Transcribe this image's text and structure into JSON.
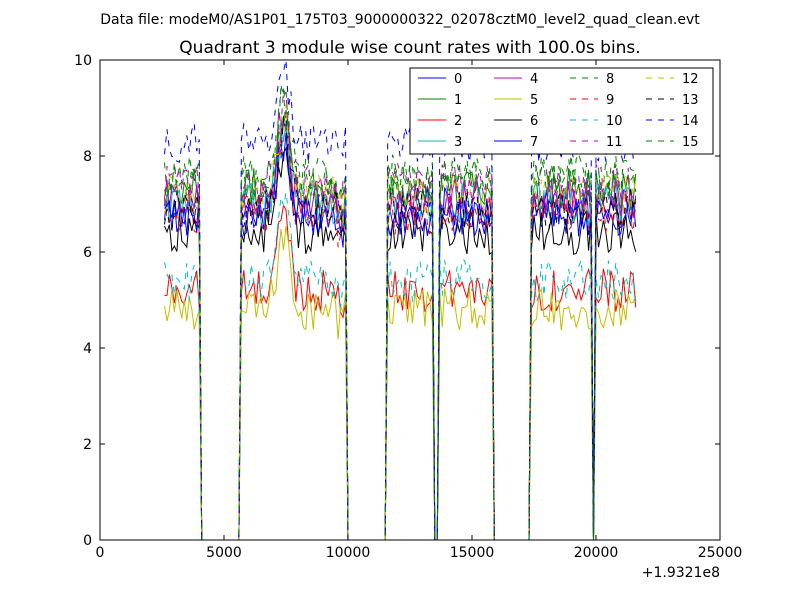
{
  "chart_data": {
    "type": "line",
    "suptitle": "Data file: modeM0/AS1P01_175T03_9000000322_02078cztM0_level2_quad_clean.evt",
    "title": "Quadrant 3 module wise count rates with 100.0s bins.",
    "xlabel": "",
    "ylabel": "",
    "xlim": [
      0,
      25000
    ],
    "ylim": [
      0,
      10
    ],
    "x_offset_label": "+1.9321e8",
    "x_ticks": [
      0,
      5000,
      10000,
      15000,
      20000,
      25000
    ],
    "y_ticks": [
      0,
      2,
      4,
      6,
      8,
      10
    ],
    "grid": false,
    "legend_position": "top-right",
    "legend_columns": 4,
    "active_intervals": [
      [
        2600,
        4000
      ],
      [
        5700,
        9900
      ],
      [
        11600,
        13400
      ],
      [
        13700,
        15800
      ],
      [
        17400,
        19800
      ],
      [
        20000,
        21600
      ]
    ],
    "series": [
      {
        "name": "0",
        "color": "#0000ff",
        "dash": "solid",
        "level": 6.9
      },
      {
        "name": "1",
        "color": "#008000",
        "dash": "solid",
        "level": 7.3
      },
      {
        "name": "2",
        "color": "#ff0000",
        "dash": "solid",
        "level": 5.2
      },
      {
        "name": "3",
        "color": "#00bfbf",
        "dash": "solid",
        "level": 7.0
      },
      {
        "name": "4",
        "color": "#bf00bf",
        "dash": "solid",
        "level": 7.1
      },
      {
        "name": "5",
        "color": "#bfbf00",
        "dash": "solid",
        "level": 4.8
      },
      {
        "name": "6",
        "color": "#000000",
        "dash": "solid",
        "level": 6.4
      },
      {
        "name": "7",
        "color": "#0000ff",
        "dash": "solid",
        "level": 6.7
      },
      {
        "name": "8",
        "color": "#008000",
        "dash": "dashed",
        "level": 7.6
      },
      {
        "name": "9",
        "color": "#ff0000",
        "dash": "dashed",
        "level": 6.8
      },
      {
        "name": "10",
        "color": "#00bfbf",
        "dash": "dashed",
        "level": 5.4
      },
      {
        "name": "11",
        "color": "#bf00bf",
        "dash": "dashed",
        "level": 7.4
      },
      {
        "name": "12",
        "color": "#bfbf00",
        "dash": "dashed",
        "level": 7.2
      },
      {
        "name": "13",
        "color": "#000000",
        "dash": "dashed",
        "level": 6.9
      },
      {
        "name": "14",
        "color": "#0000ff",
        "dash": "dashed",
        "level": 8.3
      },
      {
        "name": "15",
        "color": "#008000",
        "dash": "dashed",
        "level": 7.5
      }
    ]
  }
}
